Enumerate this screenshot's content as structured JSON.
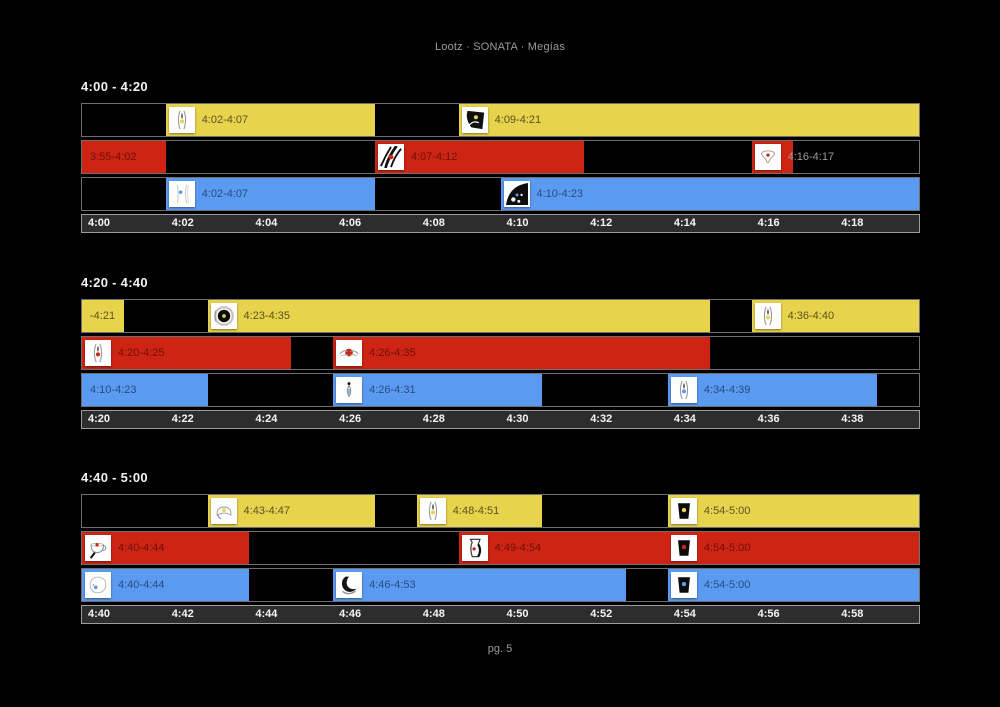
{
  "header": {
    "title": "Lootz · SONATA · Megías"
  },
  "footer": {
    "page_label": "pg. 5"
  },
  "chart_data": {
    "type": "gantt",
    "title": "Lootz · SONATA · Megías",
    "tracks_order": [
      "yellow",
      "red",
      "blue"
    ],
    "track_colors": {
      "yellow": "#e7d34c",
      "red": "#cd2414",
      "blue": "#5b9af1"
    },
    "axis_bg": "#2d2d2d",
    "sections": [
      {
        "label": "4:00 - 4:20",
        "start": "4:00",
        "end": "4:20",
        "axis_ticks": [
          "4:00",
          "4:02",
          "4:04",
          "4:06",
          "4:08",
          "4:10",
          "4:12",
          "4:14",
          "4:16",
          "4:18"
        ],
        "tracks": {
          "yellow": [
            {
              "start": "4:02",
              "end": "4:07",
              "label": "4:02-4:07",
              "icon": "pod"
            },
            {
              "start": "4:09",
              "end": "4:21",
              "label": "4:09-4:21",
              "icon": "bird"
            }
          ],
          "red": [
            {
              "start": "3:55",
              "end": "4:02",
              "label": "3:55-4:02",
              "icon": null
            },
            {
              "start": "4:07",
              "end": "4:12",
              "label": "4:07-4:12",
              "icon": "ribbon"
            },
            {
              "start": "4:16",
              "end": "4:17",
              "label": "4:16-4:17",
              "icon": "tooth",
              "label_tone": "light"
            }
          ],
          "blue": [
            {
              "start": "4:02",
              "end": "4:07",
              "label": "4:02-4:07",
              "icon": "vlines"
            },
            {
              "start": "4:10",
              "end": "4:23",
              "label": "4:10-4:23",
              "icon": "quarterdisc"
            }
          ]
        }
      },
      {
        "label": "4:20 - 4:40",
        "start": "4:20",
        "end": "4:40",
        "axis_ticks": [
          "4:20",
          "4:22",
          "4:24",
          "4:26",
          "4:28",
          "4:30",
          "4:32",
          "4:34",
          "4:36",
          "4:38"
        ],
        "tracks": {
          "yellow": [
            {
              "start": "4:20",
              "end": "4:21",
              "label": "-4:21",
              "icon": null
            },
            {
              "start": "4:23",
              "end": "4:35",
              "label": "4:23-4:35",
              "icon": "disc"
            },
            {
              "start": "4:36",
              "end": "4:40",
              "label": "4:36-4:40",
              "icon": "pod"
            }
          ],
          "red": [
            {
              "start": "4:20",
              "end": "4:25",
              "label": "4:20-4:25",
              "icon": "pod"
            },
            {
              "start": "4:26",
              "end": "4:35",
              "label": "4:26-4:35",
              "icon": "hands"
            }
          ],
          "blue": [
            {
              "start": "4:20",
              "end": "4:23",
              "label": "4:10-4:23",
              "icon": null
            },
            {
              "start": "4:26",
              "end": "4:31",
              "label": "4:26-4:31",
              "icon": "drop"
            },
            {
              "start": "4:34",
              "end": "4:39",
              "label": "4:34-4:39",
              "icon": "pod"
            }
          ]
        }
      },
      {
        "label": "4:40 - 5:00",
        "start": "4:40",
        "end": "5:00",
        "axis_ticks": [
          "4:40",
          "4:42",
          "4:44",
          "4:46",
          "4:48",
          "4:50",
          "4:52",
          "4:54",
          "4:56",
          "4:58"
        ],
        "tracks": {
          "yellow": [
            {
              "start": "4:43",
              "end": "4:47",
              "label": "4:43-4:47",
              "icon": "cap"
            },
            {
              "start": "4:48",
              "end": "4:51",
              "label": "4:48-4:51",
              "icon": "pod"
            },
            {
              "start": "4:54",
              "end": "5:00",
              "label": "4:54-5:00",
              "icon": "trapezoid"
            }
          ],
          "red": [
            {
              "start": "4:40",
              "end": "4:44",
              "label": "4:40-4:44",
              "icon": "cup"
            },
            {
              "start": "4:49",
              "end": "4:54",
              "label": "4:49-4:54",
              "icon": "jug"
            },
            {
              "start": "4:54",
              "end": "5:00",
              "label": "4:54-5:00",
              "icon": "trapezoid"
            }
          ],
          "blue": [
            {
              "start": "4:40",
              "end": "4:44",
              "label": "4:40-4:44",
              "icon": "blob"
            },
            {
              "start": "4:46",
              "end": "4:53",
              "label": "4:46-4:53",
              "icon": "moon"
            },
            {
              "start": "4:54",
              "end": "5:00",
              "label": "4:54-5:00",
              "icon": "trapezoid"
            }
          ]
        }
      }
    ]
  }
}
